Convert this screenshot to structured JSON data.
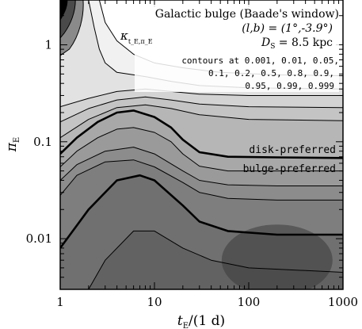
{
  "chart_data": {
    "type": "contour",
    "xlabel": "t_E/(1 d)",
    "xlabel_main": "t",
    "xlabel_sub": "E",
    "xlabel_rest": "/(1 d)",
    "ylabel_main": "π",
    "ylabel_sub": "E",
    "xscale": "log",
    "yscale": "log",
    "xlim": [
      1,
      1000
    ],
    "ylim": [
      0.003,
      2.9
    ],
    "x_ticks": [
      {
        "value": 1,
        "label": "1"
      },
      {
        "value": 10,
        "label": "10"
      },
      {
        "value": 100,
        "label": "100"
      },
      {
        "value": 1000,
        "label": "1000"
      }
    ],
    "y_ticks": [
      {
        "value": 0.01,
        "label": "0.01"
      },
      {
        "value": 0.1,
        "label": "0.1"
      },
      {
        "value": 1,
        "label": "1"
      }
    ],
    "annotations": {
      "title_line1": "Galactic bulge (Baade's window)",
      "title_line2": "(l,b) = (1°,-3.9°)",
      "title_line3": "D_S = 8.5 kpc",
      "title_line3_main": "D",
      "title_line3_sub": "S",
      "title_line3_rest": " = 8.5 kpc",
      "kappa_label": "κ",
      "kappa_sub": "t_E,π_E",
      "contours_line1": "contours at 0.001, 0.01, 0.05,",
      "contours_line2": "0.1, 0.2, 0.5, 0.8, 0.9,",
      "contours_line3": "0.95, 0.99, 0.999",
      "disk_label": "disk-preferred",
      "bulge_label": "bulge-preferred"
    },
    "contour_levels": [
      0.001,
      0.01,
      0.05,
      0.1,
      0.2,
      0.5,
      0.8,
      0.9,
      0.95,
      0.99,
      0.999
    ],
    "shading_colors": [
      "#ffffff",
      "#f1f1f1",
      "#e2e2e2",
      "#d3d3d3",
      "#c4c4c4",
      "#b6b6b6",
      "#a8a8a8",
      "#9a9a9a",
      "#8c8c8c",
      "#7e7e7e",
      "#707070",
      "#626262"
    ],
    "contours": [
      {
        "level": 0.5,
        "bold": true,
        "points": [
          [
            1,
            0.075
          ],
          [
            1.5,
            0.11
          ],
          [
            2.5,
            0.16
          ],
          [
            4,
            0.2
          ],
          [
            6,
            0.21
          ],
          [
            10,
            0.18
          ],
          [
            15,
            0.14
          ],
          [
            20,
            0.105
          ],
          [
            30,
            0.078
          ],
          [
            60,
            0.07
          ],
          [
            200,
            0.069
          ],
          [
            1000,
            0.068
          ]
        ]
      },
      {
        "level": 0.8,
        "bold": false,
        "points": [
          [
            1,
            0.055
          ],
          [
            1.5,
            0.08
          ],
          [
            2.5,
            0.11
          ],
          [
            4,
            0.135
          ],
          [
            6,
            0.14
          ],
          [
            10,
            0.125
          ],
          [
            15,
            0.1
          ],
          [
            20,
            0.075
          ],
          [
            30,
            0.056
          ],
          [
            60,
            0.05
          ],
          [
            200,
            0.05
          ],
          [
            1000,
            0.05
          ]
        ]
      },
      {
        "level": 0.9,
        "bold": false,
        "points": [
          [
            1,
            0.04
          ],
          [
            1.5,
            0.058
          ],
          [
            3,
            0.08
          ],
          [
            6,
            0.088
          ],
          [
            10,
            0.075
          ],
          [
            20,
            0.05
          ],
          [
            30,
            0.04
          ],
          [
            60,
            0.036
          ],
          [
            200,
            0.035
          ],
          [
            1000,
            0.035
          ]
        ]
      },
      {
        "level": 0.95,
        "bold": false,
        "points": [
          [
            1,
            0.028
          ],
          [
            1.5,
            0.045
          ],
          [
            3,
            0.062
          ],
          [
            6,
            0.065
          ],
          [
            10,
            0.055
          ],
          [
            20,
            0.038
          ],
          [
            30,
            0.03
          ],
          [
            60,
            0.026
          ],
          [
            200,
            0.025
          ],
          [
            1000,
            0.025
          ]
        ]
      },
      {
        "level": 0.99,
        "bold": true,
        "points": [
          [
            1,
            0.008
          ],
          [
            2,
            0.02
          ],
          [
            4,
            0.04
          ],
          [
            7,
            0.045
          ],
          [
            10,
            0.04
          ],
          [
            20,
            0.022
          ],
          [
            30,
            0.015
          ],
          [
            60,
            0.012
          ],
          [
            200,
            0.011
          ],
          [
            1000,
            0.011
          ]
        ]
      },
      {
        "level": 0.999,
        "bold": false,
        "points": [
          [
            2,
            0.003
          ],
          [
            3,
            0.006
          ],
          [
            6,
            0.012
          ],
          [
            10,
            0.012
          ],
          [
            20,
            0.008
          ],
          [
            40,
            0.006
          ],
          [
            100,
            0.005
          ],
          [
            1000,
            0.0045
          ]
        ]
      },
      {
        "level": 0.2,
        "bold": false,
        "points": [
          [
            1,
            0.11
          ],
          [
            2,
            0.17
          ],
          [
            4,
            0.225
          ],
          [
            8,
            0.24
          ],
          [
            15,
            0.22
          ],
          [
            30,
            0.19
          ],
          [
            100,
            0.17
          ],
          [
            1000,
            0.165
          ]
        ]
      },
      {
        "level": 0.1,
        "bold": false,
        "points": [
          [
            1,
            0.16
          ],
          [
            2,
            0.22
          ],
          [
            4,
            0.27
          ],
          [
            8,
            0.29
          ],
          [
            15,
            0.27
          ],
          [
            30,
            0.245
          ],
          [
            100,
            0.23
          ],
          [
            1000,
            0.225
          ]
        ]
      },
      {
        "level": 0.05,
        "bold": false,
        "points": [
          [
            1,
            0.23
          ],
          [
            2,
            0.28
          ],
          [
            4,
            0.33
          ],
          [
            8,
            0.35
          ],
          [
            15,
            0.33
          ],
          [
            30,
            0.31
          ],
          [
            100,
            0.3
          ],
          [
            1000,
            0.3
          ]
        ]
      },
      {
        "level": 0.01,
        "bold": false,
        "points": [
          [
            2,
            2.9
          ],
          [
            2.3,
            1.5
          ],
          [
            2.6,
            0.9
          ],
          [
            3,
            0.65
          ],
          [
            4,
            0.52
          ],
          [
            8,
            0.47
          ],
          [
            15,
            0.42
          ],
          [
            30,
            0.38
          ],
          [
            100,
            0.36
          ],
          [
            1000,
            0.35
          ]
        ]
      },
      {
        "level": 0.001,
        "bold": false,
        "points": [
          [
            2.6,
            2.9
          ],
          [
            3,
            1.7
          ],
          [
            4,
            1.1
          ],
          [
            6,
            0.8
          ],
          [
            10,
            0.65
          ],
          [
            20,
            0.58
          ],
          [
            50,
            0.52
          ],
          [
            200,
            0.49
          ],
          [
            1000,
            0.48
          ]
        ]
      }
    ]
  }
}
